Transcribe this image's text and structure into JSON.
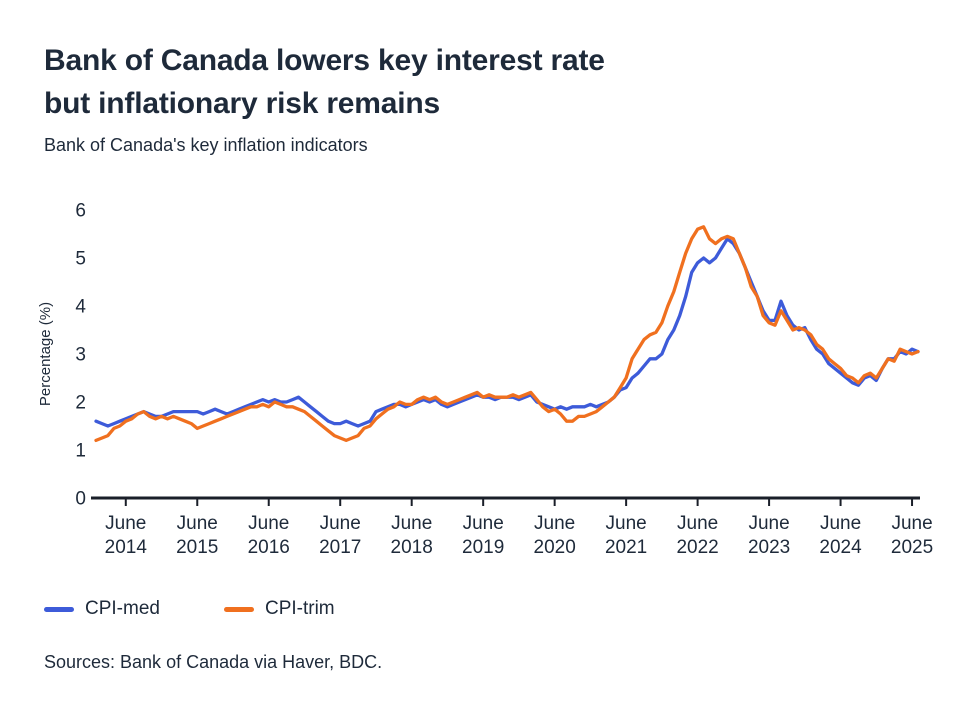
{
  "header": {
    "title_lines": [
      "Bank of Canada lowers key interest rate",
      "but inflationary risk remains"
    ],
    "subtitle": "Bank of Canada's key inflation indicators"
  },
  "footer": {
    "source": "Sources: Bank of Canada via Haver, BDC."
  },
  "chart_data": {
    "type": "line",
    "title": "Bank of Canada lowers key interest rate but inflationary risk remains",
    "subtitle": "Bank of Canada's key inflation indicators",
    "xlabel": "",
    "ylabel": "Percentage (%)",
    "ylim": [
      0,
      6
    ],
    "y_ticks": [
      0,
      1,
      2,
      3,
      4,
      5,
      6
    ],
    "grid": false,
    "legend_position": "bottom-left",
    "axis_color": "#1a1f29",
    "text_color": "#1e2a3a",
    "x_unit": "month",
    "x_start": "2014-01",
    "x_end": "2025-07",
    "x_ticks": [
      {
        "line1": "June",
        "line2": "2014",
        "index": 5
      },
      {
        "line1": "June",
        "line2": "2015",
        "index": 17
      },
      {
        "line1": "June",
        "line2": "2016",
        "index": 29
      },
      {
        "line1": "June",
        "line2": "2017",
        "index": 41
      },
      {
        "line1": "June",
        "line2": "2018",
        "index": 53
      },
      {
        "line1": "June",
        "line2": "2019",
        "index": 65
      },
      {
        "line1": "June",
        "line2": "2020",
        "index": 77
      },
      {
        "line1": "June",
        "line2": "2021",
        "index": 89
      },
      {
        "line1": "June",
        "line2": "2022",
        "index": 101
      },
      {
        "line1": "June",
        "line2": "2023",
        "index": 113
      },
      {
        "line1": "June",
        "line2": "2024",
        "index": 125
      },
      {
        "line1": "June",
        "line2": "2025",
        "index": 137
      }
    ],
    "series": [
      {
        "name": "cpi-med",
        "label": "CPI-med",
        "color": "#3d5bd9",
        "values": [
          1.6,
          1.55,
          1.5,
          1.55,
          1.6,
          1.65,
          1.7,
          1.75,
          1.8,
          1.75,
          1.7,
          1.7,
          1.75,
          1.8,
          1.8,
          1.8,
          1.8,
          1.8,
          1.75,
          1.8,
          1.85,
          1.8,
          1.75,
          1.8,
          1.85,
          1.9,
          1.95,
          2.0,
          2.05,
          2.0,
          2.05,
          2.0,
          2.0,
          2.05,
          2.1,
          2.0,
          1.9,
          1.8,
          1.7,
          1.6,
          1.55,
          1.55,
          1.6,
          1.55,
          1.5,
          1.55,
          1.6,
          1.8,
          1.85,
          1.9,
          1.95,
          1.95,
          1.9,
          1.95,
          2.0,
          2.05,
          2.0,
          2.05,
          1.95,
          1.9,
          1.95,
          2.0,
          2.05,
          2.1,
          2.15,
          2.1,
          2.1,
          2.05,
          2.1,
          2.1,
          2.1,
          2.05,
          2.1,
          2.15,
          2.0,
          1.95,
          1.9,
          1.85,
          1.9,
          1.85,
          1.9,
          1.9,
          1.9,
          1.95,
          1.9,
          1.95,
          2.0,
          2.1,
          2.25,
          2.3,
          2.5,
          2.6,
          2.75,
          2.9,
          2.9,
          3.0,
          3.3,
          3.5,
          3.8,
          4.2,
          4.7,
          4.9,
          5.0,
          4.9,
          5.0,
          5.2,
          5.4,
          5.3,
          5.1,
          4.8,
          4.5,
          4.2,
          3.9,
          3.7,
          3.7,
          4.1,
          3.8,
          3.6,
          3.5,
          3.55,
          3.3,
          3.1,
          3.0,
          2.8,
          2.7,
          2.6,
          2.5,
          2.4,
          2.35,
          2.5,
          2.55,
          2.45,
          2.7,
          2.9,
          2.9,
          3.05,
          3.0,
          3.1,
          3.05
        ]
      },
      {
        "name": "cpi-trim",
        "label": "CPI-trim",
        "color": "#f0701f",
        "values": [
          1.2,
          1.25,
          1.3,
          1.45,
          1.5,
          1.6,
          1.65,
          1.75,
          1.8,
          1.7,
          1.65,
          1.7,
          1.65,
          1.7,
          1.65,
          1.6,
          1.55,
          1.45,
          1.5,
          1.55,
          1.6,
          1.65,
          1.7,
          1.75,
          1.8,
          1.85,
          1.9,
          1.9,
          1.95,
          1.9,
          2.0,
          1.95,
          1.9,
          1.9,
          1.85,
          1.8,
          1.7,
          1.6,
          1.5,
          1.4,
          1.3,
          1.25,
          1.2,
          1.25,
          1.3,
          1.45,
          1.5,
          1.65,
          1.75,
          1.85,
          1.9,
          2.0,
          1.95,
          1.95,
          2.05,
          2.1,
          2.05,
          2.1,
          2.0,
          1.95,
          2.0,
          2.05,
          2.1,
          2.15,
          2.2,
          2.1,
          2.15,
          2.1,
          2.1,
          2.1,
          2.15,
          2.1,
          2.15,
          2.2,
          2.05,
          1.9,
          1.8,
          1.85,
          1.75,
          1.6,
          1.6,
          1.7,
          1.7,
          1.75,
          1.8,
          1.9,
          2.0,
          2.1,
          2.3,
          2.5,
          2.9,
          3.1,
          3.3,
          3.4,
          3.45,
          3.65,
          4.0,
          4.3,
          4.7,
          5.1,
          5.4,
          5.6,
          5.65,
          5.4,
          5.3,
          5.4,
          5.45,
          5.4,
          5.1,
          4.8,
          4.4,
          4.2,
          3.8,
          3.65,
          3.6,
          3.9,
          3.7,
          3.5,
          3.55,
          3.5,
          3.4,
          3.2,
          3.1,
          2.9,
          2.8,
          2.7,
          2.55,
          2.5,
          2.4,
          2.55,
          2.6,
          2.5,
          2.7,
          2.9,
          2.85,
          3.1,
          3.05,
          3.0,
          3.05
        ]
      }
    ]
  }
}
